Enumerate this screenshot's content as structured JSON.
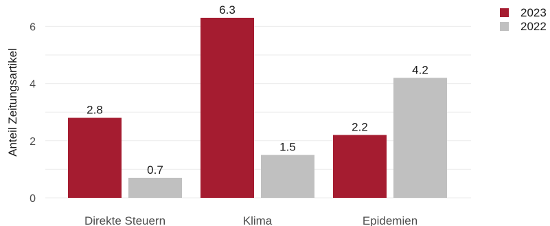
{
  "chart_data": {
    "type": "bar",
    "categories": [
      "Direkte Steuern",
      "Klima",
      "Epidemien"
    ],
    "series": [
      {
        "name": "2023",
        "values": [
          2.8,
          6.3,
          2.2
        ],
        "color": "#a51c30"
      },
      {
        "name": "2022",
        "values": [
          0.7,
          1.5,
          4.2
        ],
        "color": "#c0c0c0"
      }
    ],
    "xlabel": "",
    "ylabel": "Anteil Zeitungsartikel",
    "ylim": [
      0,
      6.5
    ],
    "yticks": [
      0,
      2,
      4,
      6
    ],
    "grid": true,
    "legend_position": "top-right"
  }
}
